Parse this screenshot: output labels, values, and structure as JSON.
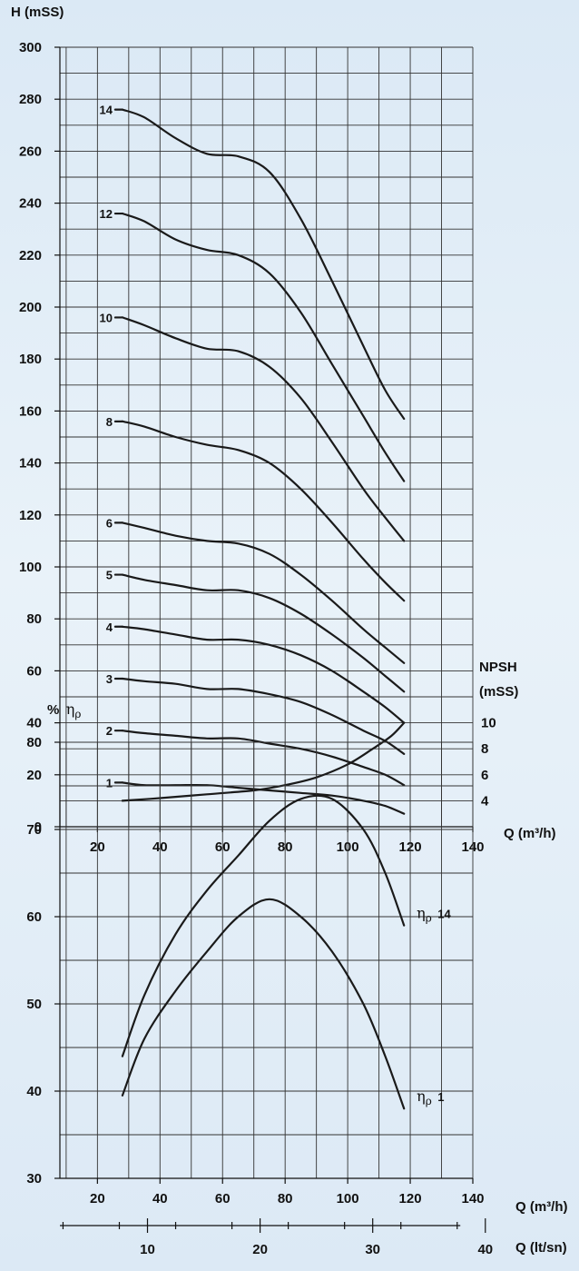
{
  "chart_data": [
    {
      "type": "line",
      "ylabel": "H (mSS)",
      "xlabel": "Q (m³/h)",
      "x_ticks": [
        20,
        40,
        60,
        80,
        100,
        120,
        140
      ],
      "y_ticks": [
        0,
        20,
        40,
        60,
        80,
        100,
        120,
        140,
        160,
        180,
        200,
        220,
        240,
        260,
        280,
        300
      ],
      "xlim": [
        8,
        140
      ],
      "ylim": [
        0,
        300
      ],
      "grid": true,
      "series": [
        {
          "name": "14",
          "x": [
            28,
            35,
            45,
            55,
            65,
            75,
            85,
            95,
            105,
            112,
            118
          ],
          "y": [
            276,
            273,
            265,
            259,
            258,
            252,
            234,
            210,
            185,
            168,
            157
          ]
        },
        {
          "name": "12",
          "x": [
            28,
            35,
            45,
            55,
            65,
            75,
            85,
            95,
            105,
            112,
            118
          ],
          "y": [
            236,
            233,
            226,
            222,
            220,
            213,
            198,
            178,
            158,
            144,
            133
          ]
        },
        {
          "name": "10",
          "x": [
            28,
            35,
            45,
            55,
            65,
            75,
            85,
            95,
            105,
            112,
            118
          ],
          "y": [
            196,
            193,
            188,
            184,
            183,
            177,
            165,
            148,
            130,
            119,
            110
          ]
        },
        {
          "name": "8",
          "x": [
            28,
            35,
            45,
            55,
            65,
            75,
            85,
            95,
            105,
            112,
            118
          ],
          "y": [
            156,
            154,
            150,
            147,
            145,
            140,
            130,
            117,
            103,
            94,
            87
          ]
        },
        {
          "name": "6",
          "x": [
            28,
            35,
            45,
            55,
            65,
            75,
            85,
            95,
            105,
            112,
            118
          ],
          "y": [
            117,
            115,
            112,
            110,
            109,
            105,
            97,
            87,
            76,
            69,
            63
          ]
        },
        {
          "name": "5",
          "x": [
            28,
            35,
            45,
            55,
            65,
            75,
            85,
            95,
            105,
            112,
            118
          ],
          "y": [
            97,
            95,
            93,
            91,
            91,
            88,
            82,
            74,
            65,
            58,
            52
          ]
        },
        {
          "name": "4",
          "x": [
            28,
            35,
            45,
            55,
            65,
            75,
            85,
            95,
            105,
            112,
            118
          ],
          "y": [
            77,
            76,
            74,
            72,
            72,
            70,
            66,
            60,
            52,
            46,
            40
          ]
        },
        {
          "name": "3",
          "x": [
            28,
            35,
            45,
            55,
            65,
            75,
            85,
            95,
            105,
            112,
            118
          ],
          "y": [
            57,
            56,
            55,
            53,
            53,
            51,
            48,
            43,
            37,
            33,
            28
          ]
        },
        {
          "name": "2",
          "x": [
            28,
            35,
            45,
            55,
            65,
            75,
            85,
            95,
            105,
            112,
            118
          ],
          "y": [
            37,
            36,
            35,
            34,
            34,
            32,
            30,
            27,
            23,
            20,
            16
          ]
        },
        {
          "name": "1",
          "x": [
            28,
            35,
            45,
            55,
            65,
            75,
            85,
            95,
            105,
            112,
            118
          ],
          "y": [
            17,
            16,
            16,
            16,
            15,
            14,
            13,
            12,
            10,
            8,
            5
          ]
        },
        {
          "name": "NPSH",
          "x": [
            28,
            40,
            55,
            70,
            80,
            90,
            100,
            108,
            114,
            118
          ],
          "y": [
            10,
            11,
            12.5,
            14,
            16,
            19,
            24,
            30,
            35,
            40
          ]
        }
      ],
      "npsh_axis": {
        "label_line1": "NPSH",
        "label_line2": "(mSS)",
        "ticks": [
          {
            "label": "10",
            "h": 40
          },
          {
            "label": "8",
            "h": 30
          },
          {
            "label": "6",
            "h": 20
          },
          {
            "label": "4",
            "h": 10
          }
        ]
      }
    },
    {
      "type": "line",
      "ylabel_prefix": "%",
      "xlabel": "Q (m³/h)",
      "xlabel2": "Q (lt/sn)",
      "x_ticks": [
        20,
        40,
        60,
        80,
        100,
        120,
        140
      ],
      "y_ticks": [
        30,
        40,
        50,
        60,
        70,
        80
      ],
      "x2_ticks": [
        10,
        20,
        30,
        40
      ],
      "xlim": [
        8,
        140
      ],
      "ylim": [
        30,
        80
      ],
      "grid": true,
      "series": [
        {
          "name": "14",
          "x": [
            28,
            35,
            45,
            55,
            65,
            75,
            85,
            95,
            105,
            112,
            118
          ],
          "y": [
            44,
            51,
            58,
            63,
            67,
            71,
            73.5,
            73.5,
            70,
            65,
            59
          ]
        },
        {
          "name": "1",
          "x": [
            28,
            35,
            45,
            55,
            65,
            75,
            85,
            95,
            105,
            112,
            118
          ],
          "y": [
            39.5,
            46,
            51.5,
            56,
            60,
            62,
            60,
            56,
            50,
            44,
            38
          ]
        }
      ]
    }
  ]
}
